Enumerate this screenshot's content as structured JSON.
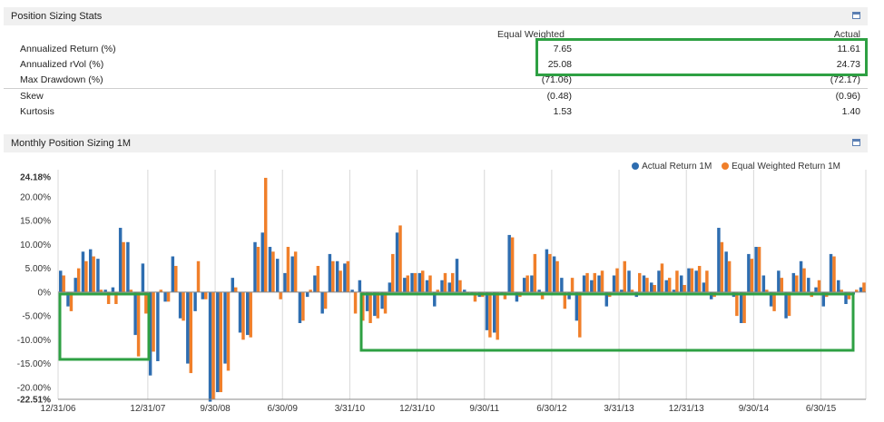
{
  "stats_panel": {
    "title": "Position Sizing Stats",
    "columns": [
      "Equal Weighted",
      "Actual"
    ],
    "rows": [
      {
        "label": "Annualized Return (%)",
        "equal": "7.65",
        "actual": "11.61"
      },
      {
        "label": "Annualized rVol (%)",
        "equal": "25.08",
        "actual": "24.73"
      },
      {
        "label": "Max Drawdown (%)",
        "equal": "(71.06)",
        "actual": "(72.17)"
      },
      {
        "label": "Skew",
        "equal": "(0.48)",
        "actual": "(0.96)"
      },
      {
        "label": "Kurtosis",
        "equal": "1.53",
        "actual": "1.40"
      }
    ]
  },
  "chart_panel": {
    "title": "Monthly Position Sizing 1M"
  },
  "colors": {
    "actual": "#2e6db0",
    "equal": "#f07f2a",
    "highlight": "#2ea043"
  },
  "chart_data": {
    "type": "bar",
    "title": "",
    "xlabel": "",
    "ylabel": "",
    "ylim": [
      -22.51,
      24.18
    ],
    "y_ticks": [
      "24.18%",
      "20.00%",
      "15.00%",
      "10.00%",
      "5.00%",
      "0%",
      "-5.00%",
      "-10.00%",
      "-15.00%",
      "-20.00%",
      "-22.51%"
    ],
    "y_tick_values": [
      24.18,
      20,
      15,
      10,
      5,
      0,
      -5,
      -10,
      -15,
      -20,
      -22.51
    ],
    "x_tick_labels": [
      "12/31/06",
      "12/31/07",
      "9/30/08",
      "6/30/09",
      "3/31/10",
      "12/31/10",
      "9/30/11",
      "6/30/12",
      "3/31/13",
      "12/31/13",
      "9/30/14",
      "6/30/15"
    ],
    "x_tick_index": [
      0,
      12,
      21,
      30,
      39,
      48,
      57,
      66,
      75,
      84,
      93,
      102
    ],
    "legend": [
      "Actual Return 1M",
      "Equal Weighted Return 1M"
    ],
    "legend_position": "top-right",
    "grid": "vertical",
    "series": [
      {
        "name": "Actual Return 1M",
        "values": [
          4.5,
          -3.0,
          3.0,
          8.5,
          9.0,
          7.0,
          0.5,
          1.0,
          13.5,
          10.5,
          -9.0,
          6.0,
          -17.5,
          -14.5,
          -2.0,
          7.5,
          -5.5,
          -15.0,
          -4.0,
          -1.5,
          -23.0,
          -21.0,
          -15.0,
          3.0,
          -8.5,
          -9.0,
          10.5,
          12.5,
          9.5,
          7.0,
          4.0,
          7.5,
          -6.5,
          -1.0,
          3.5,
          -4.5,
          8.0,
          6.5,
          6.0,
          0.5,
          2.5,
          -4.0,
          -5.0,
          -3.5,
          2.0,
          12.5,
          3.0,
          4.0,
          4.0,
          2.5,
          -3.0,
          2.5,
          2.0,
          7.0,
          0.5,
          -0.5,
          -1.0,
          -8.0,
          -8.5,
          -0.5,
          12.0,
          -2.0,
          3.0,
          3.5,
          0.5,
          9.0,
          7.5,
          3.0,
          -1.5,
          -6.0,
          3.5,
          2.5,
          3.5,
          -3.0,
          3.5,
          0.5,
          4.5,
          -1.0,
          3.5,
          2.0,
          4.5,
          2.5,
          0.5,
          3.5,
          5.0,
          4.5,
          2.0,
          -1.5,
          13.5,
          8.5,
          -1.0,
          -6.5,
          8.0,
          9.5,
          3.5,
          -3.0,
          4.5,
          -5.5,
          4.0,
          6.5,
          3.0,
          1.0,
          -3.0,
          8.0,
          2.5,
          -2.5,
          -0.5,
          1.0
        ]
      },
      {
        "name": "Equal Weighted Return 1M",
        "values": [
          3.5,
          -4.0,
          5.0,
          6.5,
          7.5,
          0.5,
          -2.5,
          -2.5,
          10.5,
          0.5,
          -13.5,
          -4.5,
          -12.5,
          0.5,
          -2.0,
          5.5,
          -6.0,
          -17.0,
          6.5,
          -1.5,
          -22.5,
          -21.0,
          -16.5,
          1.0,
          -10.0,
          -9.5,
          9.5,
          24.0,
          8.5,
          -1.5,
          9.5,
          8.5,
          -6.0,
          0.5,
          5.5,
          -3.5,
          6.5,
          4.5,
          6.5,
          -4.5,
          -6.0,
          -6.5,
          -5.5,
          -4.5,
          8.0,
          14.0,
          3.5,
          4.0,
          4.5,
          3.5,
          0.5,
          4.0,
          4.0,
          2.5,
          -0.5,
          -2.0,
          -1.0,
          -9.5,
          -10.0,
          -1.5,
          11.5,
          -1.0,
          3.5,
          8.0,
          -1.5,
          8.0,
          6.5,
          -3.5,
          3.0,
          -9.5,
          4.0,
          4.0,
          4.5,
          -1.0,
          5.0,
          6.5,
          0.5,
          4.0,
          3.0,
          1.5,
          6.0,
          3.0,
          4.5,
          1.5,
          5.0,
          5.5,
          4.5,
          -1.0,
          10.5,
          6.5,
          -5.0,
          -6.5,
          7.0,
          9.5,
          0.5,
          -4.0,
          3.0,
          -5.0,
          3.5,
          5.0,
          -1.0,
          2.5,
          -1.0,
          7.5,
          0.5,
          -1.5,
          0.5,
          2.0
        ]
      }
    ]
  }
}
